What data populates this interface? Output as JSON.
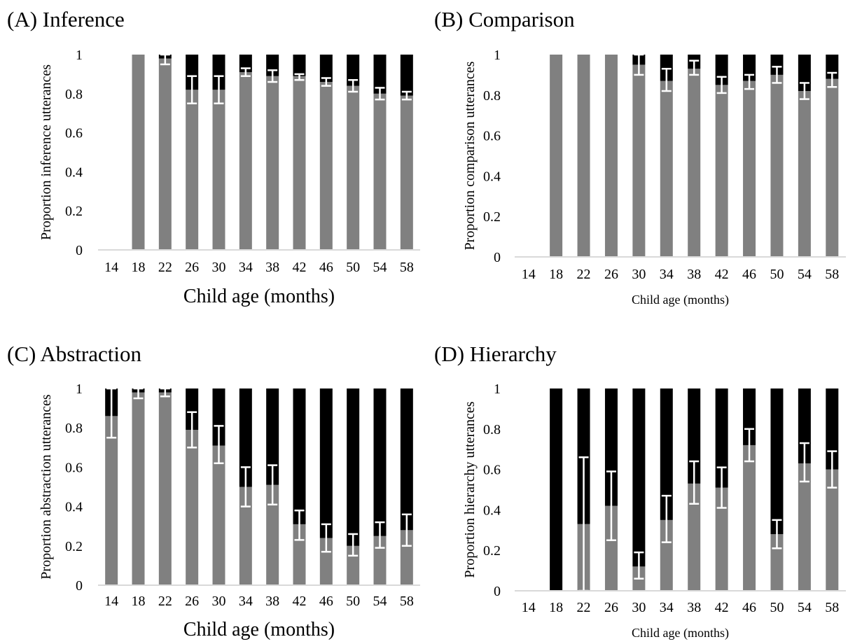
{
  "chart_data": [
    {
      "type": "bar",
      "stacked": true,
      "title": "(A) Inference",
      "xlabel": "Child age (months)",
      "ylabel": "Proportion inference utterances",
      "ylim": [
        0,
        1
      ],
      "yticks": [
        "0",
        "0.2",
        "0.4",
        "0.6",
        "0.8",
        "1"
      ],
      "categories": [
        "14",
        "18",
        "22",
        "26",
        "30",
        "34",
        "38",
        "42",
        "46",
        "50",
        "54",
        "58"
      ],
      "series": [
        {
          "color": "#808080",
          "values": [
            null,
            1.0,
            0.98,
            0.82,
            0.82,
            0.91,
            0.89,
            0.89,
            0.86,
            0.84,
            0.8,
            0.79
          ]
        },
        {
          "color": "#000000",
          "values": [
            null,
            0.0,
            0.02,
            0.18,
            0.18,
            0.09,
            0.11,
            0.11,
            0.14,
            0.16,
            0.2,
            0.21
          ]
        }
      ],
      "error_bars": [
        null,
        null,
        [
          0.95,
          1.0
        ],
        [
          0.75,
          0.89
        ],
        [
          0.75,
          0.89
        ],
        [
          0.89,
          0.93
        ],
        [
          0.86,
          0.92
        ],
        [
          0.87,
          0.9
        ],
        [
          0.84,
          0.88
        ],
        [
          0.81,
          0.87
        ],
        [
          0.77,
          0.83
        ],
        [
          0.77,
          0.81
        ]
      ],
      "grid": false,
      "legend": "none"
    },
    {
      "type": "bar",
      "stacked": true,
      "title": "(B) Comparison",
      "xlabel": "Child age (months)",
      "ylabel": "Proportion comparison utterances",
      "ylim": [
        0,
        1
      ],
      "yticks": [
        "0",
        "0.2",
        "0.4",
        "0.6",
        "0.8",
        "1"
      ],
      "categories": [
        "14",
        "18",
        "22",
        "26",
        "30",
        "34",
        "38",
        "42",
        "46",
        "50",
        "54",
        "58"
      ],
      "series": [
        {
          "color": "#808080",
          "values": [
            null,
            1.0,
            1.0,
            1.0,
            0.95,
            0.87,
            0.93,
            0.85,
            0.87,
            0.9,
            0.82,
            0.88
          ]
        },
        {
          "color": "#000000",
          "values": [
            null,
            0.0,
            0.0,
            0.0,
            0.05,
            0.13,
            0.07,
            0.15,
            0.13,
            0.1,
            0.18,
            0.12
          ]
        }
      ],
      "error_bars": [
        null,
        null,
        null,
        null,
        [
          0.9,
          1.0
        ],
        [
          0.82,
          0.93
        ],
        [
          0.9,
          0.97
        ],
        [
          0.81,
          0.89
        ],
        [
          0.83,
          0.9
        ],
        [
          0.86,
          0.94
        ],
        [
          0.78,
          0.86
        ],
        [
          0.84,
          0.91
        ]
      ],
      "grid": false,
      "legend": "none"
    },
    {
      "type": "bar",
      "stacked": true,
      "title": "(C) Abstraction",
      "xlabel": "Child age (months)",
      "ylabel": "Proportion abstraction utterances",
      "ylim": [
        0,
        1
      ],
      "yticks": [
        "0",
        "0.2",
        "0.4",
        "0.6",
        "0.8",
        "1"
      ],
      "categories": [
        "14",
        "18",
        "22",
        "26",
        "30",
        "34",
        "38",
        "42",
        "46",
        "50",
        "54",
        "58"
      ],
      "series": [
        {
          "color": "#808080",
          "values": [
            0.86,
            0.98,
            0.98,
            0.79,
            0.71,
            0.5,
            0.51,
            0.31,
            0.24,
            0.2,
            0.25,
            0.28
          ]
        },
        {
          "color": "#000000",
          "values": [
            0.14,
            0.02,
            0.02,
            0.21,
            0.29,
            0.5,
            0.49,
            0.69,
            0.76,
            0.8,
            0.75,
            0.72
          ]
        }
      ],
      "error_bars": [
        [
          0.75,
          1.0
        ],
        [
          0.95,
          1.0
        ],
        [
          0.96,
          1.0
        ],
        [
          0.7,
          0.88
        ],
        [
          0.62,
          0.81
        ],
        [
          0.4,
          0.6
        ],
        [
          0.41,
          0.61
        ],
        [
          0.23,
          0.38
        ],
        [
          0.17,
          0.31
        ],
        [
          0.15,
          0.26
        ],
        [
          0.19,
          0.32
        ],
        [
          0.2,
          0.36
        ]
      ],
      "grid": false,
      "legend": "none"
    },
    {
      "type": "bar",
      "stacked": true,
      "title": "(D) Hierarchy",
      "xlabel": "Child age (months)",
      "ylabel": "Proportion hierarchy utterances",
      "ylim": [
        0,
        1
      ],
      "yticks": [
        "0",
        "0.2",
        "0.4",
        "0.6",
        "0.8",
        "1"
      ],
      "categories": [
        "14",
        "18",
        "22",
        "26",
        "30",
        "34",
        "38",
        "42",
        "46",
        "50",
        "54",
        "58"
      ],
      "series": [
        {
          "color": "#808080",
          "values": [
            null,
            0.0,
            0.33,
            0.42,
            0.12,
            0.35,
            0.53,
            0.51,
            0.72,
            0.28,
            0.63,
            0.6
          ]
        },
        {
          "color": "#000000",
          "values": [
            null,
            1.0,
            0.67,
            0.58,
            0.88,
            0.65,
            0.47,
            0.49,
            0.28,
            0.72,
            0.37,
            0.4
          ]
        }
      ],
      "error_bars": [
        null,
        null,
        [
          0.0,
          0.66
        ],
        [
          0.25,
          0.59
        ],
        [
          0.06,
          0.19
        ],
        [
          0.24,
          0.47
        ],
        [
          0.43,
          0.64
        ],
        [
          0.41,
          0.61
        ],
        [
          0.64,
          0.8
        ],
        [
          0.21,
          0.35
        ],
        [
          0.54,
          0.73
        ],
        [
          0.51,
          0.69
        ]
      ],
      "grid": false,
      "legend": "none"
    }
  ]
}
